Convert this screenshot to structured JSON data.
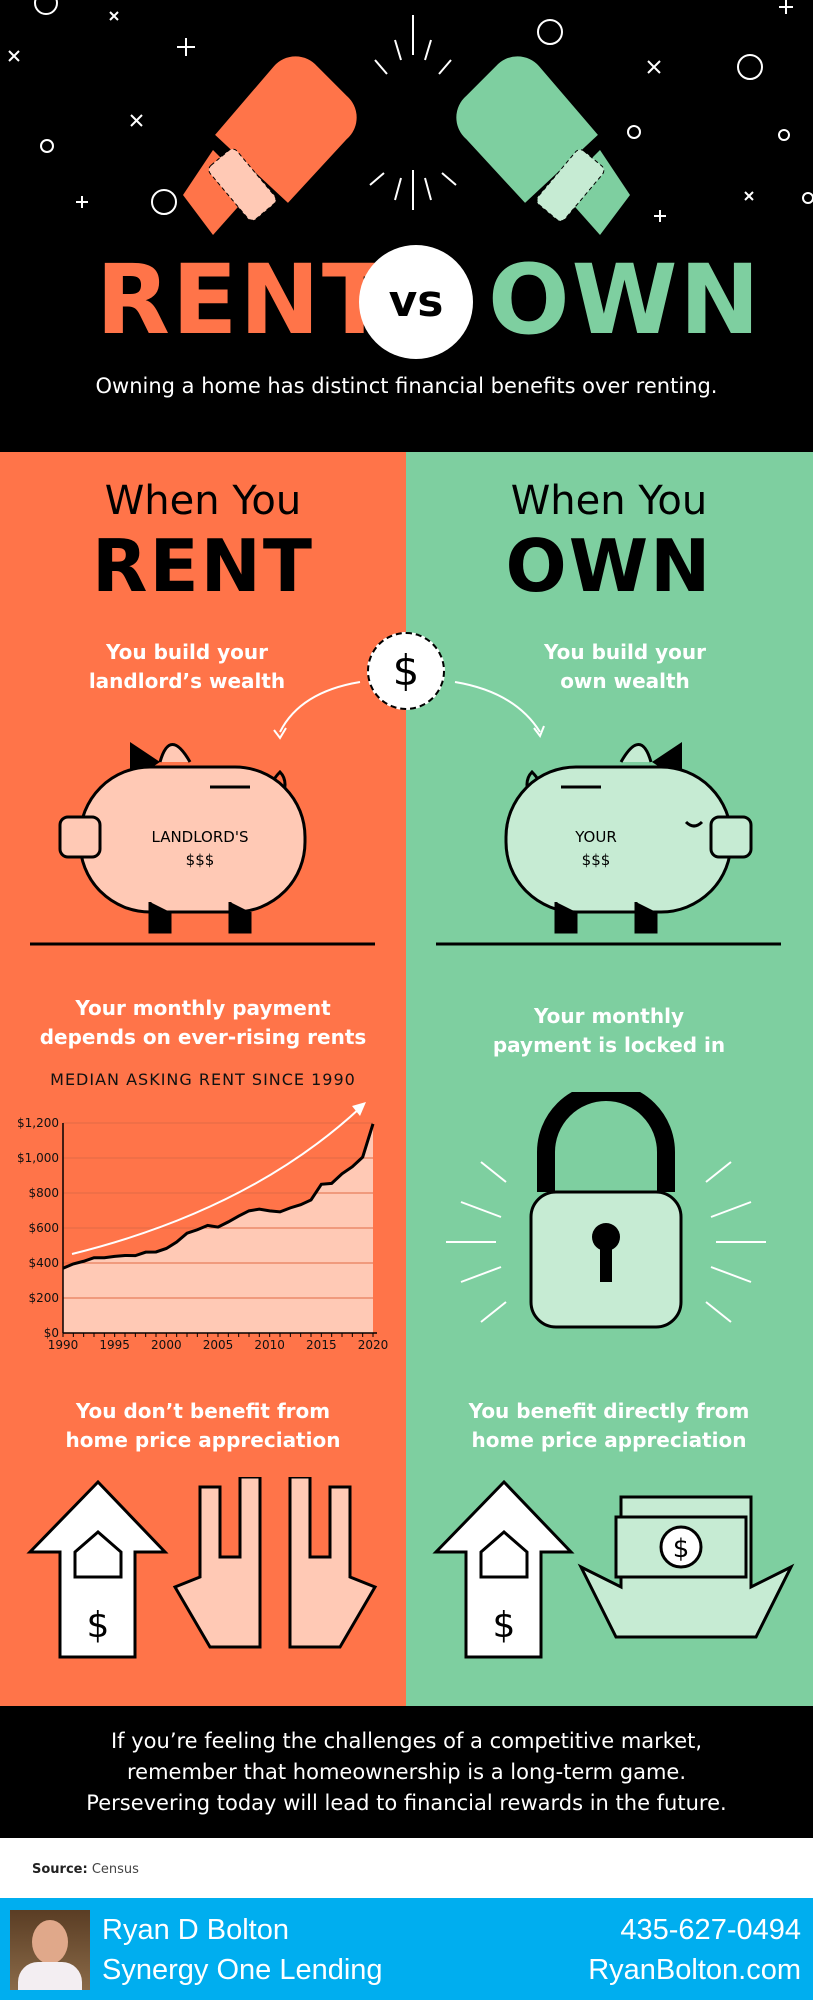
{
  "header": {
    "title_left": "RENT",
    "title_vs": "vs",
    "title_right": "OWN",
    "subtitle": "Owning a home has distinct financial benefits over renting."
  },
  "colors": {
    "rent": "#FF7449",
    "own": "#7ECFA0",
    "rent_light": "#FFC9B5",
    "own_light": "#C6EBD3",
    "footer": "#00AEEF"
  },
  "rent": {
    "when": "When You",
    "big": "RENT",
    "wealth": [
      "You build your",
      "landlord’s wealth"
    ],
    "piggy": [
      "LANDLORD'S",
      "$$$"
    ],
    "payment": [
      "Your monthly payment",
      "depends on ever-rising rents"
    ],
    "appreciation": [
      "You don’t benefit from",
      "home price appreciation"
    ]
  },
  "own": {
    "when": "When You",
    "big": "OWN",
    "wealth": [
      "You build your",
      "own wealth"
    ],
    "piggy": [
      "YOUR",
      "$$$"
    ],
    "payment": [
      "Your monthly",
      "payment is locked in"
    ],
    "appreciation": [
      "You benefit directly from",
      "home price appreciation"
    ]
  },
  "dollar": "$",
  "chart_data": {
    "type": "area",
    "title": "MEDIAN ASKING RENT SINCE 1990",
    "xlabel": "",
    "ylabel": "",
    "x": [
      1990,
      1991,
      1992,
      1993,
      1994,
      1995,
      1996,
      1997,
      1998,
      1999,
      2000,
      2001,
      2002,
      2003,
      2004,
      2005,
      2006,
      2007,
      2008,
      2009,
      2010,
      2011,
      2012,
      2013,
      2014,
      2015,
      2016,
      2017,
      2018,
      2019,
      2020
    ],
    "values": [
      370,
      395,
      410,
      430,
      430,
      438,
      443,
      442,
      462,
      463,
      483,
      520,
      570,
      590,
      615,
      605,
      635,
      668,
      698,
      708,
      698,
      692,
      715,
      733,
      760,
      850,
      855,
      910,
      950,
      1005,
      1195
    ],
    "xlim": [
      1990,
      2020
    ],
    "ylim": [
      0,
      1200
    ],
    "xticks": [
      "1990",
      "1995",
      "2000",
      "2005",
      "2010",
      "2015",
      "2020"
    ],
    "yticks": [
      "$0",
      "$200",
      "$400",
      "$600",
      "$800",
      "$1,000",
      "$1,200"
    ],
    "grid": true
  },
  "closing": [
    "If you’re feeling the challenges of a competitive market,",
    "remember that homeownership is a long-term game.",
    "Persevering today will lead to financial rewards in the future."
  ],
  "source": {
    "label": "Source:",
    "value": "Census"
  },
  "footer": {
    "name": "Ryan D Bolton",
    "company": "Synergy One Lending",
    "phone": "435-627-0494",
    "website": "RyanBolton.com"
  }
}
